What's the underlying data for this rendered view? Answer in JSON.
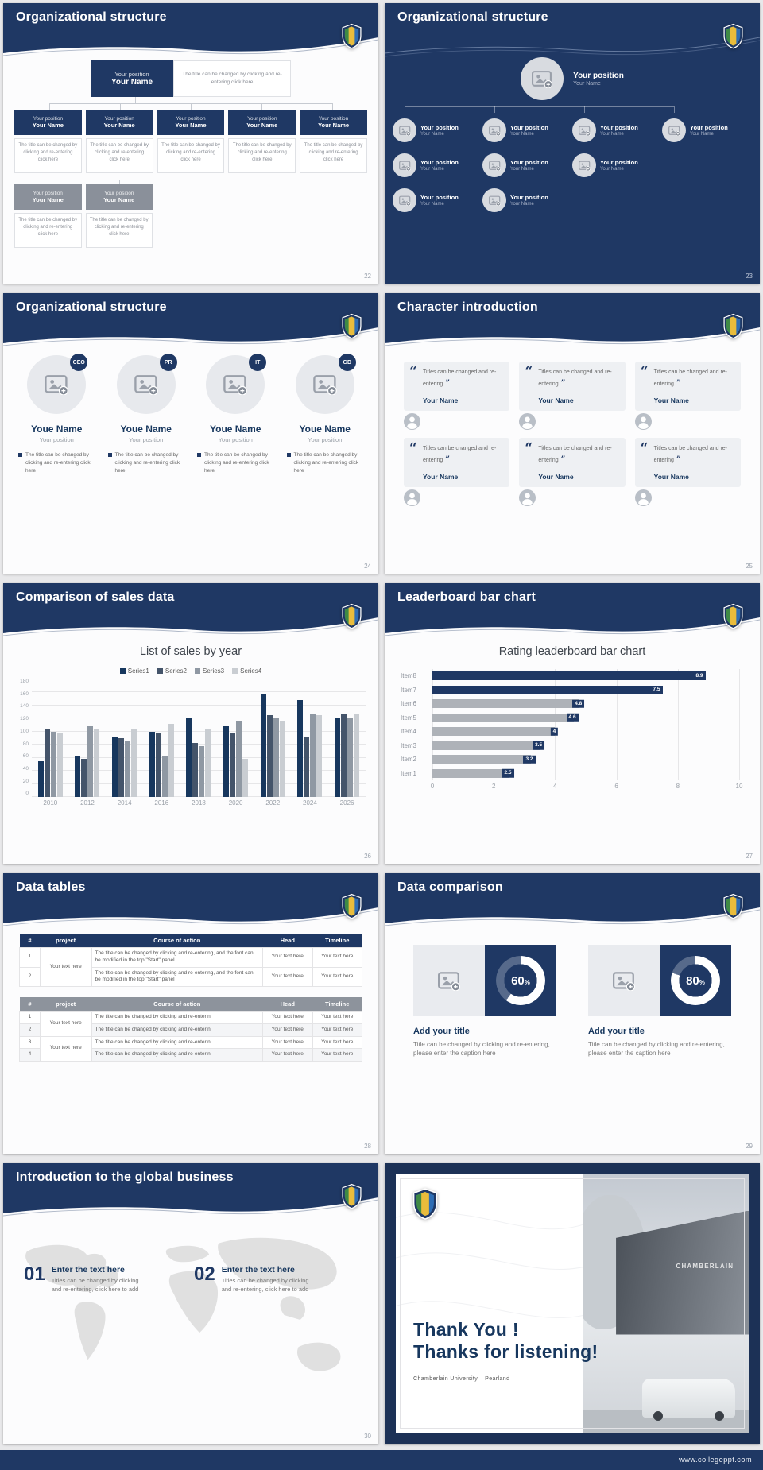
{
  "page": {
    "footer_url": "www.collegeppt.com"
  },
  "slides": {
    "s22": {
      "title": "Organizational structure",
      "page_num": "22",
      "position": "Your position",
      "name": "Your Name",
      "top_note": "The title can be changed by clicking and re-entering click here",
      "note": "The title can be changed by clicking and re-entering click here"
    },
    "s23": {
      "title": "Organizational structure",
      "page_num": "23",
      "position": "Your position",
      "name": "Your Name"
    },
    "s24": {
      "title": "Organizational structure",
      "page_num": "24",
      "badges": [
        "CEO",
        "PR",
        "IT",
        "GD"
      ],
      "person_name": "Youe Name",
      "person_position": "Your position",
      "note": "The title can be changed by clicking and re-entering click here"
    },
    "s25": {
      "title": "Character introduction",
      "page_num": "25",
      "open_quote": "“",
      "close_quote": "”",
      "quote": "Titles can be changed and re-entering",
      "name": "Your Name"
    },
    "s26": {
      "title": "Comparison of sales data",
      "page_num": "26"
    },
    "s27": {
      "title": "Leaderboard bar chart",
      "page_num": "27"
    },
    "s28": {
      "title": "Data tables",
      "page_num": "28",
      "headers": [
        "#",
        "project",
        "Course of action",
        "Head",
        "Timeline"
      ],
      "t1": {
        "project": "Your text here",
        "rows": [
          {
            "num": "1",
            "course": "The title can be changed by clicking and re-entering, and the font can be modified in the top \"Start\" panel",
            "head": "Your text here",
            "timeline": "Your text here"
          },
          {
            "num": "2",
            "course": "The title can be changed by clicking and re-entering, and the font can be modified in the top \"Start\" panel",
            "head": "Your text here",
            "timeline": "Your text here"
          }
        ]
      },
      "t2": {
        "project_a": "Your text here",
        "project_b": "Your text here",
        "rows": [
          {
            "num": "1",
            "course": "The title can be changed by clicking and re-enterin",
            "head": "Your text here",
            "timeline": "Your text here"
          },
          {
            "num": "2",
            "course": "The title can be changed by clicking and re-enterin",
            "head": "Your text here",
            "timeline": "Your text here"
          },
          {
            "num": "3",
            "course": "The title can be changed by clicking and re-enterin",
            "head": "Your text here",
            "timeline": "Your text here"
          },
          {
            "num": "4",
            "course": "The title can be changed by clicking and re-enterin",
            "head": "Your text here",
            "timeline": "Your text here"
          }
        ]
      }
    },
    "s29": {
      "title": "Data comparison",
      "page_num": "29",
      "pct": "%",
      "panels": [
        {
          "value": 60,
          "heading": "Add your title",
          "caption": "Title can be changed by clicking and re-entering, please enter the caption here"
        },
        {
          "value": 80,
          "heading": "Add your title",
          "caption": "Title can be changed by clicking and re-entering, please enter the caption here"
        }
      ]
    },
    "s30": {
      "title": "Introduction to the global business",
      "page_num": "30",
      "items": [
        {
          "num": "01",
          "heading": "Enter the text here",
          "caption": "Titles can be changed by clicking and re-entering, click here to add"
        },
        {
          "num": "02",
          "heading": "Enter the text here",
          "caption": "Titles can be changed by clicking and re-entering, click here to add"
        }
      ]
    },
    "s31": {
      "thank_you": "Thank You !",
      "listening": "Thanks for listening!",
      "university": "Chamberlain University – Pearland",
      "photo_sign": "CHAMBERLAIN"
    }
  },
  "chart_data": [
    {
      "type": "bar",
      "title": "List of sales by year",
      "categories": [
        "2010",
        "2012",
        "2014",
        "2016",
        "2018",
        "2020",
        "2022",
        "2024",
        "2026"
      ],
      "series": [
        {
          "name": "Series1",
          "color": "#17375e",
          "values": [
            55,
            62,
            93,
            100,
            120,
            108,
            158,
            148,
            122
          ]
        },
        {
          "name": "Series2",
          "color": "#44546a",
          "values": [
            103,
            58,
            90,
            98,
            83,
            98,
            125,
            92,
            126
          ]
        },
        {
          "name": "Series3",
          "color": "#8f98a3",
          "values": [
            100,
            108,
            86,
            62,
            78,
            115,
            122,
            128,
            122
          ]
        },
        {
          "name": "Series4",
          "color": "#c9cdd2",
          "values": [
            97,
            104,
            103,
            112,
            105,
            58,
            115,
            125,
            128
          ]
        }
      ],
      "ylim": [
        0,
        180
      ],
      "ytick_step": 20,
      "grid": true,
      "legend_position": "top"
    },
    {
      "type": "bar-horizontal",
      "title": "Rating leaderboard bar chart",
      "categories": [
        "Item8",
        "Item7",
        "Item6",
        "Item5",
        "Item4",
        "Item3",
        "Item2",
        "Item1"
      ],
      "values": [
        8.9,
        7.5,
        4.8,
        4.6,
        4,
        3.5,
        3.2,
        2.5
      ],
      "colors": [
        "#1f3864",
        "#1f3864",
        "#aeb2b8",
        "#aeb2b8",
        "#aeb2b8",
        "#aeb2b8",
        "#aeb2b8",
        "#aeb2b8"
      ],
      "value_label_style": [
        "inside",
        "inside",
        "chip",
        "chip",
        "chip",
        "chip",
        "chip",
        "chip"
      ],
      "xlim": [
        0,
        10
      ],
      "xticks": [
        0,
        2,
        4,
        6,
        8,
        10
      ],
      "grid": true
    }
  ]
}
